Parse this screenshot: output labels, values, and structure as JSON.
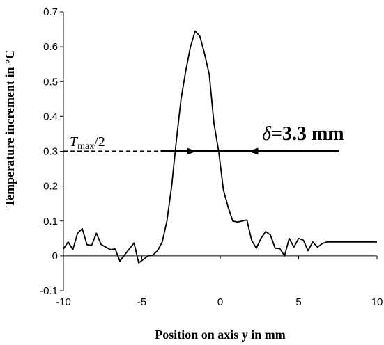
{
  "chart_data": {
    "type": "line",
    "title": "",
    "xlabel": "Position on axis y in mm",
    "ylabel": "Temperature increment in °C",
    "xlim": [
      -10,
      10
    ],
    "ylim": [
      -0.1,
      0.7
    ],
    "x_ticks": [
      -10,
      -5,
      0,
      5,
      10
    ],
    "y_ticks": [
      -0.1,
      0,
      0.1,
      0.2,
      0.3,
      0.4,
      0.5,
      0.6,
      0.7
    ],
    "x_tick_labels": [
      "-10",
      "-5",
      "0",
      "5",
      "10"
    ],
    "y_tick_labels": [
      "-0.1",
      "0",
      "0.1",
      "0.2",
      "0.3",
      "0.4",
      "0.5",
      "0.6",
      "0.7"
    ],
    "grid": false,
    "legend": "none",
    "series": [
      {
        "x": [
          -10,
          -9.7,
          -9.4,
          -9.1,
          -8.8,
          -8.5,
          -8.2,
          -7.9,
          -7.6,
          -7.3,
          -7.0,
          -6.7,
          -6.4,
          -6.1,
          -5.8,
          -5.5,
          -5.2,
          -4.9,
          -4.6,
          -4.3,
          -4.0,
          -3.7,
          -3.4,
          -3.1,
          -2.8,
          -2.5,
          -2.2,
          -1.9,
          -1.6,
          -1.3,
          -1.0,
          -0.7,
          -0.4,
          -0.1,
          0.2,
          0.5,
          0.8,
          1.1,
          1.4,
          1.7,
          2.0,
          2.3,
          2.6,
          2.9,
          3.2,
          3.5,
          3.8,
          4.1,
          4.4,
          4.7,
          5.0,
          5.3,
          5.6,
          5.9,
          6.2,
          6.5,
          6.8,
          7.1,
          7.4,
          7.7,
          8.0,
          8.3,
          8.6,
          8.9,
          9.2,
          9.5,
          9.8,
          10.0
        ],
        "y": [
          0.02,
          0.04,
          0.018,
          0.065,
          0.078,
          0.032,
          0.03,
          0.065,
          0.033,
          0.025,
          0.018,
          0.02,
          -0.015,
          0.003,
          0.02,
          0.037,
          -0.02,
          -0.01,
          0.0,
          0.002,
          0.015,
          0.04,
          0.1,
          0.2,
          0.33,
          0.45,
          0.53,
          0.6,
          0.645,
          0.63,
          0.58,
          0.52,
          0.38,
          0.3,
          0.19,
          0.14,
          0.1,
          0.097,
          0.1,
          0.103,
          0.045,
          0.022,
          0.05,
          0.07,
          0.06,
          0.022,
          0.021,
          0.0,
          0.05,
          0.025,
          0.05,
          0.045,
          0.015,
          0.04,
          0.025,
          0.035,
          0.04,
          0.04,
          0.04,
          0.04,
          0.04,
          0.04,
          0.04,
          0.04,
          0.04,
          0.04,
          0.04,
          0.04
        ]
      }
    ],
    "annotations": {
      "half_max_label_T": "T",
      "half_max_label_sub": "max",
      "half_max_label_tail": "/2",
      "half_max_level": 0.3,
      "half_max_dashed_to": -3.8,
      "delta_bar_from": -3.8,
      "delta_bar_to": 7.6,
      "delta_arrow_left": -1.5,
      "delta_arrow_right": 1.8,
      "delta_label_symbol": "δ",
      "delta_label_value": "=3.3 mm"
    }
  }
}
